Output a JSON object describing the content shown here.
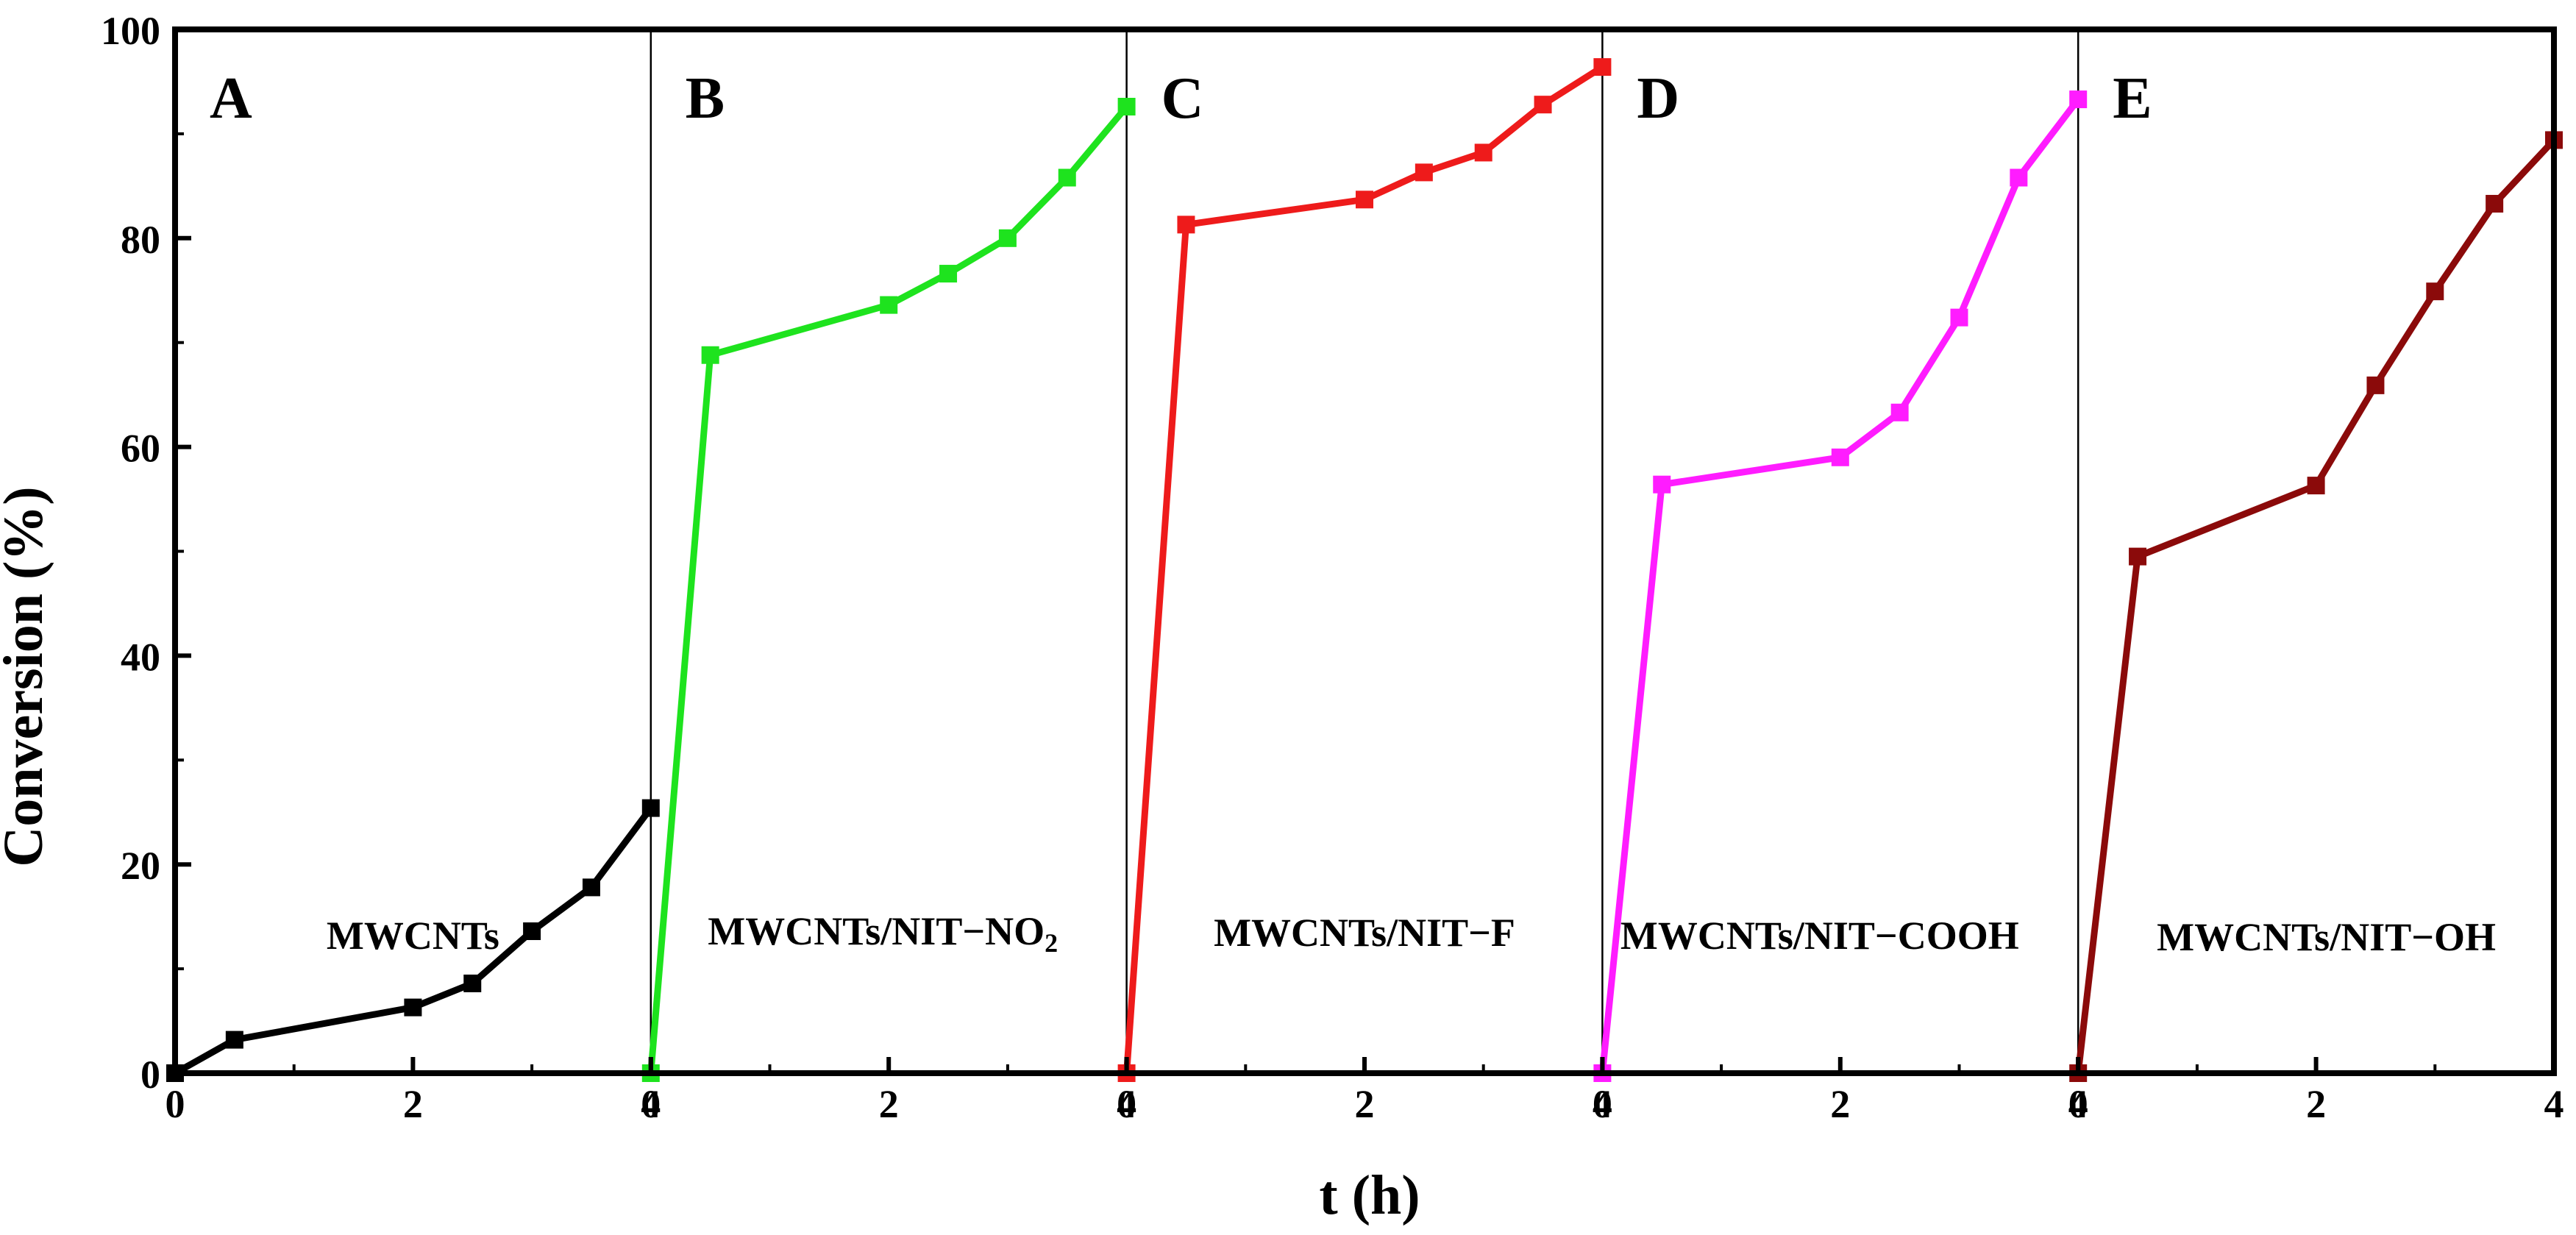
{
  "chart_data": {
    "type": "line",
    "ylabel": "Conversion (%)",
    "xlabel": "t (h)",
    "ylim": [
      0,
      100
    ],
    "yticks": [
      "0",
      "20",
      "40",
      "60",
      "80",
      "100"
    ],
    "xlim": [
      0,
      4
    ],
    "panels": [
      {
        "letter": "A",
        "name_main": "MWCNTs",
        "name_sub": "",
        "color": "#000000",
        "xticks": [
          "0",
          "2",
          "4"
        ],
        "x": [
          0,
          0.5,
          2,
          2.5,
          3,
          3.5,
          4
        ],
        "values": [
          0,
          3.2,
          6.3,
          8.6,
          13.6,
          17.8,
          25.4
        ]
      },
      {
        "letter": "B",
        "name_main": "MWCNTs/NIT−NO",
        "name_sub": "2",
        "color": "#1ee31e",
        "xticks": [
          "0",
          "2",
          "4"
        ],
        "x": [
          0,
          0.5,
          2,
          2.5,
          3,
          3.5,
          4
        ],
        "values": [
          0,
          68.8,
          73.6,
          76.6,
          80.0,
          85.8,
          92.6
        ]
      },
      {
        "letter": "C",
        "name_main": "MWCNTs/NIT−F",
        "name_sub": "",
        "color": "#ee1b1b",
        "xticks": [
          "0",
          "2",
          "4"
        ],
        "x": [
          0,
          0.5,
          2,
          2.5,
          3,
          3.5,
          4
        ],
        "values": [
          0,
          81.3,
          83.7,
          86.3,
          88.2,
          92.8,
          96.4
        ]
      },
      {
        "letter": "D",
        "name_main": "MWCNTs/NIT−COOH",
        "name_sub": "",
        "color": "#ff1cff",
        "xticks": [
          "0",
          "2",
          "4"
        ],
        "x": [
          0,
          0.5,
          2,
          2.5,
          3,
          3.5,
          4
        ],
        "values": [
          0,
          56.4,
          59.0,
          63.3,
          72.4,
          85.8,
          93.3
        ]
      },
      {
        "letter": "E",
        "name_main": "MWCNTs/NIT−OH",
        "name_sub": "",
        "color": "#8b0a0a",
        "xticks": [
          "0",
          "2",
          "4"
        ],
        "x": [
          0,
          0.5,
          2,
          2.5,
          3,
          3.5,
          4
        ],
        "values": [
          0,
          49.5,
          56.3,
          65.9,
          74.9,
          83.3,
          89.4
        ]
      }
    ]
  }
}
